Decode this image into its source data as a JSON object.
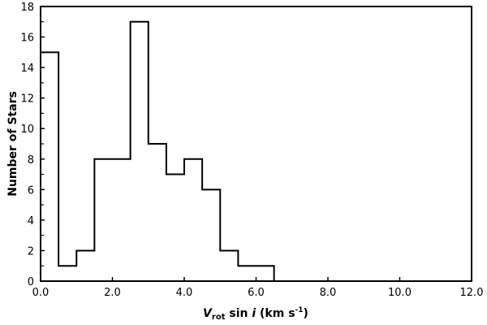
{
  "chart_data": {
    "type": "bar",
    "subtype": "step-histogram",
    "title": "",
    "xlabel": "V_rot sin i (km s^-1)",
    "xlabel_parts": {
      "main": "V",
      "sub": "rot",
      "mid": " sin ",
      "ital": "i",
      "unit_open": " (km s",
      "sup": "-1",
      "unit_close": ")"
    },
    "ylabel": "Number of Stars",
    "xlim": [
      0,
      12
    ],
    "ylim": [
      0,
      18
    ],
    "x_ticks": [
      "0.0",
      "2.0",
      "4.0",
      "6.0",
      "8.0",
      "10.0",
      "12.0"
    ],
    "y_ticks": [
      "0",
      "2",
      "4",
      "6",
      "8",
      "10",
      "12",
      "14",
      "16",
      "18"
    ],
    "bin_width": 0.5,
    "bin_edges": [
      0,
      0.5,
      1.0,
      1.5,
      2.0,
      2.5,
      3.0,
      3.5,
      4.0,
      4.5,
      5.0,
      5.5,
      6.0,
      6.5
    ],
    "categories": [
      "0.0-0.5",
      "0.5-1.0",
      "1.0-1.5",
      "1.5-2.0",
      "2.0-2.5",
      "2.5-3.0",
      "3.0-3.5",
      "3.5-4.0",
      "4.0-4.5",
      "4.5-5.0",
      "5.0-5.5",
      "5.5-6.0",
      "6.0-6.5"
    ],
    "values": [
      15,
      1,
      2,
      8,
      8,
      17,
      9,
      7,
      8,
      6,
      2,
      1,
      1
    ],
    "grid": false,
    "legend": null,
    "line_color": "#000000"
  }
}
